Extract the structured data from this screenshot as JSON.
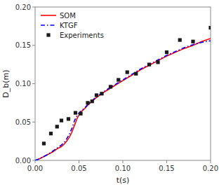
{
  "chart_data": {
    "type": "line",
    "xlabel": "t(s)",
    "ylabel": "D_b(m)",
    "xlim": [
      0.0,
      0.2
    ],
    "ylim": [
      0.0,
      0.2
    ],
    "xticks": [
      {
        "value": 0.0,
        "label": "0.00"
      },
      0.05,
      {
        "value": 0.1,
        "label": "0.10"
      },
      0.15,
      {
        "value": 0.2,
        "label": "0.20"
      }
    ],
    "yticks": [
      {
        "value": 0.0,
        "label": "0.00"
      },
      0.05,
      {
        "value": 0.1,
        "label": "0.10"
      },
      0.15,
      {
        "value": 0.2,
        "label": "0.20"
      }
    ],
    "grid": false,
    "legend": "upper-left",
    "series": [
      {
        "name": "SOM",
        "type": "line",
        "color": "#ff0000",
        "line_style": "solid",
        "x": [
          0.0,
          0.005,
          0.01,
          0.015,
          0.02,
          0.025,
          0.03,
          0.033,
          0.036,
          0.039,
          0.042,
          0.045,
          0.048,
          0.051,
          0.054,
          0.057,
          0.06,
          0.065,
          0.07,
          0.075,
          0.08,
          0.09,
          0.1,
          0.11,
          0.12,
          0.13,
          0.14,
          0.15,
          0.16,
          0.17,
          0.18,
          0.19,
          0.2
        ],
        "values": [
          0.0,
          0.002,
          0.005,
          0.008,
          0.011,
          0.015,
          0.018,
          0.021,
          0.025,
          0.03,
          0.037,
          0.046,
          0.055,
          0.061,
          0.065,
          0.068,
          0.072,
          0.077,
          0.082,
          0.086,
          0.09,
          0.097,
          0.104,
          0.111,
          0.118,
          0.124,
          0.13,
          0.136,
          0.141,
          0.146,
          0.15,
          0.155,
          0.159
        ]
      },
      {
        "name": "KTGF",
        "type": "line",
        "color": "#0000ff",
        "line_style": "dashdot",
        "x": [
          0.0,
          0.005,
          0.01,
          0.015,
          0.02,
          0.025,
          0.03,
          0.033,
          0.036,
          0.039,
          0.042,
          0.045,
          0.048,
          0.051,
          0.054,
          0.057,
          0.06,
          0.065,
          0.07,
          0.075,
          0.08,
          0.09,
          0.1,
          0.11,
          0.12,
          0.13,
          0.14,
          0.15,
          0.16,
          0.17,
          0.18,
          0.19,
          0.2
        ],
        "values": [
          0.0,
          0.002,
          0.005,
          0.008,
          0.012,
          0.016,
          0.02,
          0.023,
          0.028,
          0.034,
          0.042,
          0.052,
          0.059,
          0.063,
          0.066,
          0.069,
          0.073,
          0.078,
          0.083,
          0.087,
          0.091,
          0.098,
          0.105,
          0.112,
          0.119,
          0.125,
          0.131,
          0.137,
          0.142,
          0.147,
          0.151,
          0.154,
          0.156
        ]
      },
      {
        "name": "Experiments",
        "type": "scatter",
        "color": "#1a1a1a",
        "marker": "square",
        "x": [
          0.01,
          0.018,
          0.025,
          0.03,
          0.038,
          0.046,
          0.052,
          0.06,
          0.065,
          0.07,
          0.076,
          0.086,
          0.095,
          0.105,
          0.115,
          0.13,
          0.14,
          0.15,
          0.165,
          0.18,
          0.2
        ],
        "values": [
          0.022,
          0.035,
          0.044,
          0.052,
          0.054,
          0.062,
          0.061,
          0.075,
          0.077,
          0.085,
          0.087,
          0.096,
          0.105,
          0.115,
          0.113,
          0.125,
          0.128,
          0.141,
          0.157,
          0.155,
          0.173
        ]
      }
    ]
  }
}
